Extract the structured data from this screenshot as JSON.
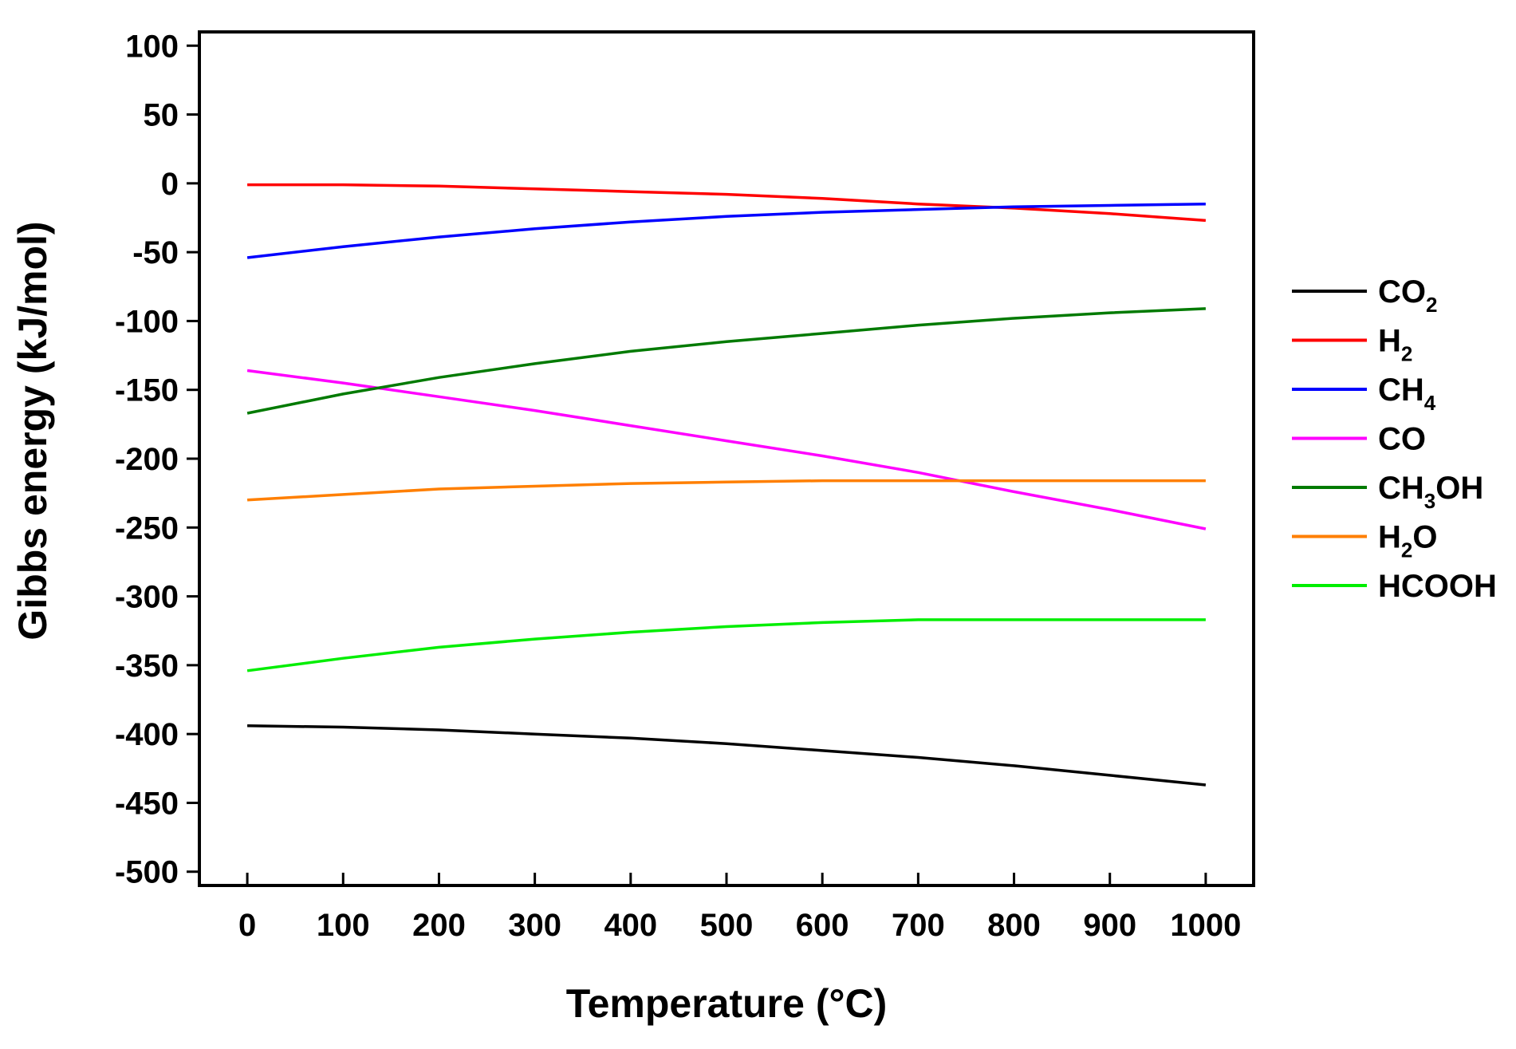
{
  "chart_data": {
    "type": "line",
    "title": "",
    "xlabel": "Temperature (°C)",
    "ylabel": "Gibbs energy (kJ/mol)",
    "xlim": [
      -50,
      1050
    ],
    "ylim": [
      -510,
      110
    ],
    "xticks": [
      0,
      100,
      200,
      300,
      400,
      500,
      600,
      700,
      800,
      900,
      1000
    ],
    "yticks": [
      100,
      50,
      0,
      -50,
      -100,
      -150,
      -200,
      -250,
      -300,
      -350,
      -400,
      -450,
      -500
    ],
    "x": [
      0,
      100,
      200,
      300,
      400,
      500,
      600,
      700,
      800,
      900,
      1000
    ],
    "legend_position": "right",
    "series": [
      {
        "name": "CO2",
        "label_main": "CO",
        "label_sub": "2",
        "label_tail": "",
        "color": "#000000",
        "values": [
          -394,
          -395,
          -397,
          -400,
          -403,
          -407,
          -412,
          -417,
          -423,
          -430,
          -437
        ]
      },
      {
        "name": "H2",
        "label_main": "H",
        "label_sub": "2",
        "label_tail": "",
        "color": "#ff0000",
        "values": [
          -1,
          -1,
          -2,
          -4,
          -6,
          -8,
          -11,
          -15,
          -18,
          -22,
          -27
        ]
      },
      {
        "name": "CH4",
        "label_main": "CH",
        "label_sub": "4",
        "label_tail": "",
        "color": "#0000ff",
        "values": [
          -54,
          -46,
          -39,
          -33,
          -28,
          -24,
          -21,
          -19,
          -17,
          -16,
          -15
        ]
      },
      {
        "name": "CO",
        "label_main": "CO",
        "label_sub": "",
        "label_tail": "",
        "color": "#ff00ff",
        "values": [
          -136,
          -145,
          -155,
          -165,
          -176,
          -187,
          -198,
          -210,
          -224,
          -237,
          -251
        ]
      },
      {
        "name": "CH3OH",
        "label_main": "CH",
        "label_sub": "3",
        "label_tail": "OH",
        "color": "#007a00",
        "values": [
          -167,
          -153,
          -141,
          -131,
          -122,
          -115,
          -109,
          -103,
          -98,
          -94,
          -91
        ]
      },
      {
        "name": "H2O",
        "label_main": "H",
        "label_sub": "2",
        "label_tail": "O",
        "color": "#ff7f00",
        "values": [
          -230,
          -226,
          -222,
          -220,
          -218,
          -217,
          -216,
          -216,
          -216,
          -216,
          -216
        ]
      },
      {
        "name": "HCOOH",
        "label_main": "HCOOH",
        "label_sub": "",
        "label_tail": "",
        "color": "#00ee00",
        "values": [
          -354,
          -345,
          -337,
          -331,
          -326,
          -322,
          -319,
          -317,
          -317,
          -317,
          -317
        ]
      }
    ]
  }
}
